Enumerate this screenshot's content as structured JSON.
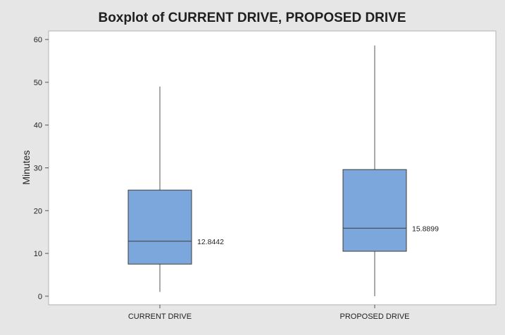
{
  "chart_data": {
    "type": "boxplot",
    "title": "Boxplot of CURRENT DRIVE, PROPOSED DRIVE",
    "ylabel": "Minutes",
    "xlabel": "",
    "ylim": [
      -2,
      62
    ],
    "yticks": [
      0,
      10,
      20,
      30,
      40,
      50,
      60
    ],
    "categories": [
      "CURRENT DRIVE",
      "PROPOSED DRIVE"
    ],
    "boxes": [
      {
        "category": "CURRENT DRIVE",
        "min": 1,
        "q1": 7.5,
        "median": 12.8442,
        "q3": 24.8,
        "max": 49,
        "median_label": "12.8442"
      },
      {
        "category": "PROPOSED DRIVE",
        "min": 0,
        "q1": 10.5,
        "median": 15.8899,
        "q3": 29.6,
        "max": 58.6,
        "median_label": "15.8899"
      }
    ],
    "grid": false,
    "box_color": "#7ba7dc",
    "line_color": "#555555",
    "plot_background": "#ffffff",
    "figure_background": "#e6e6e6"
  }
}
